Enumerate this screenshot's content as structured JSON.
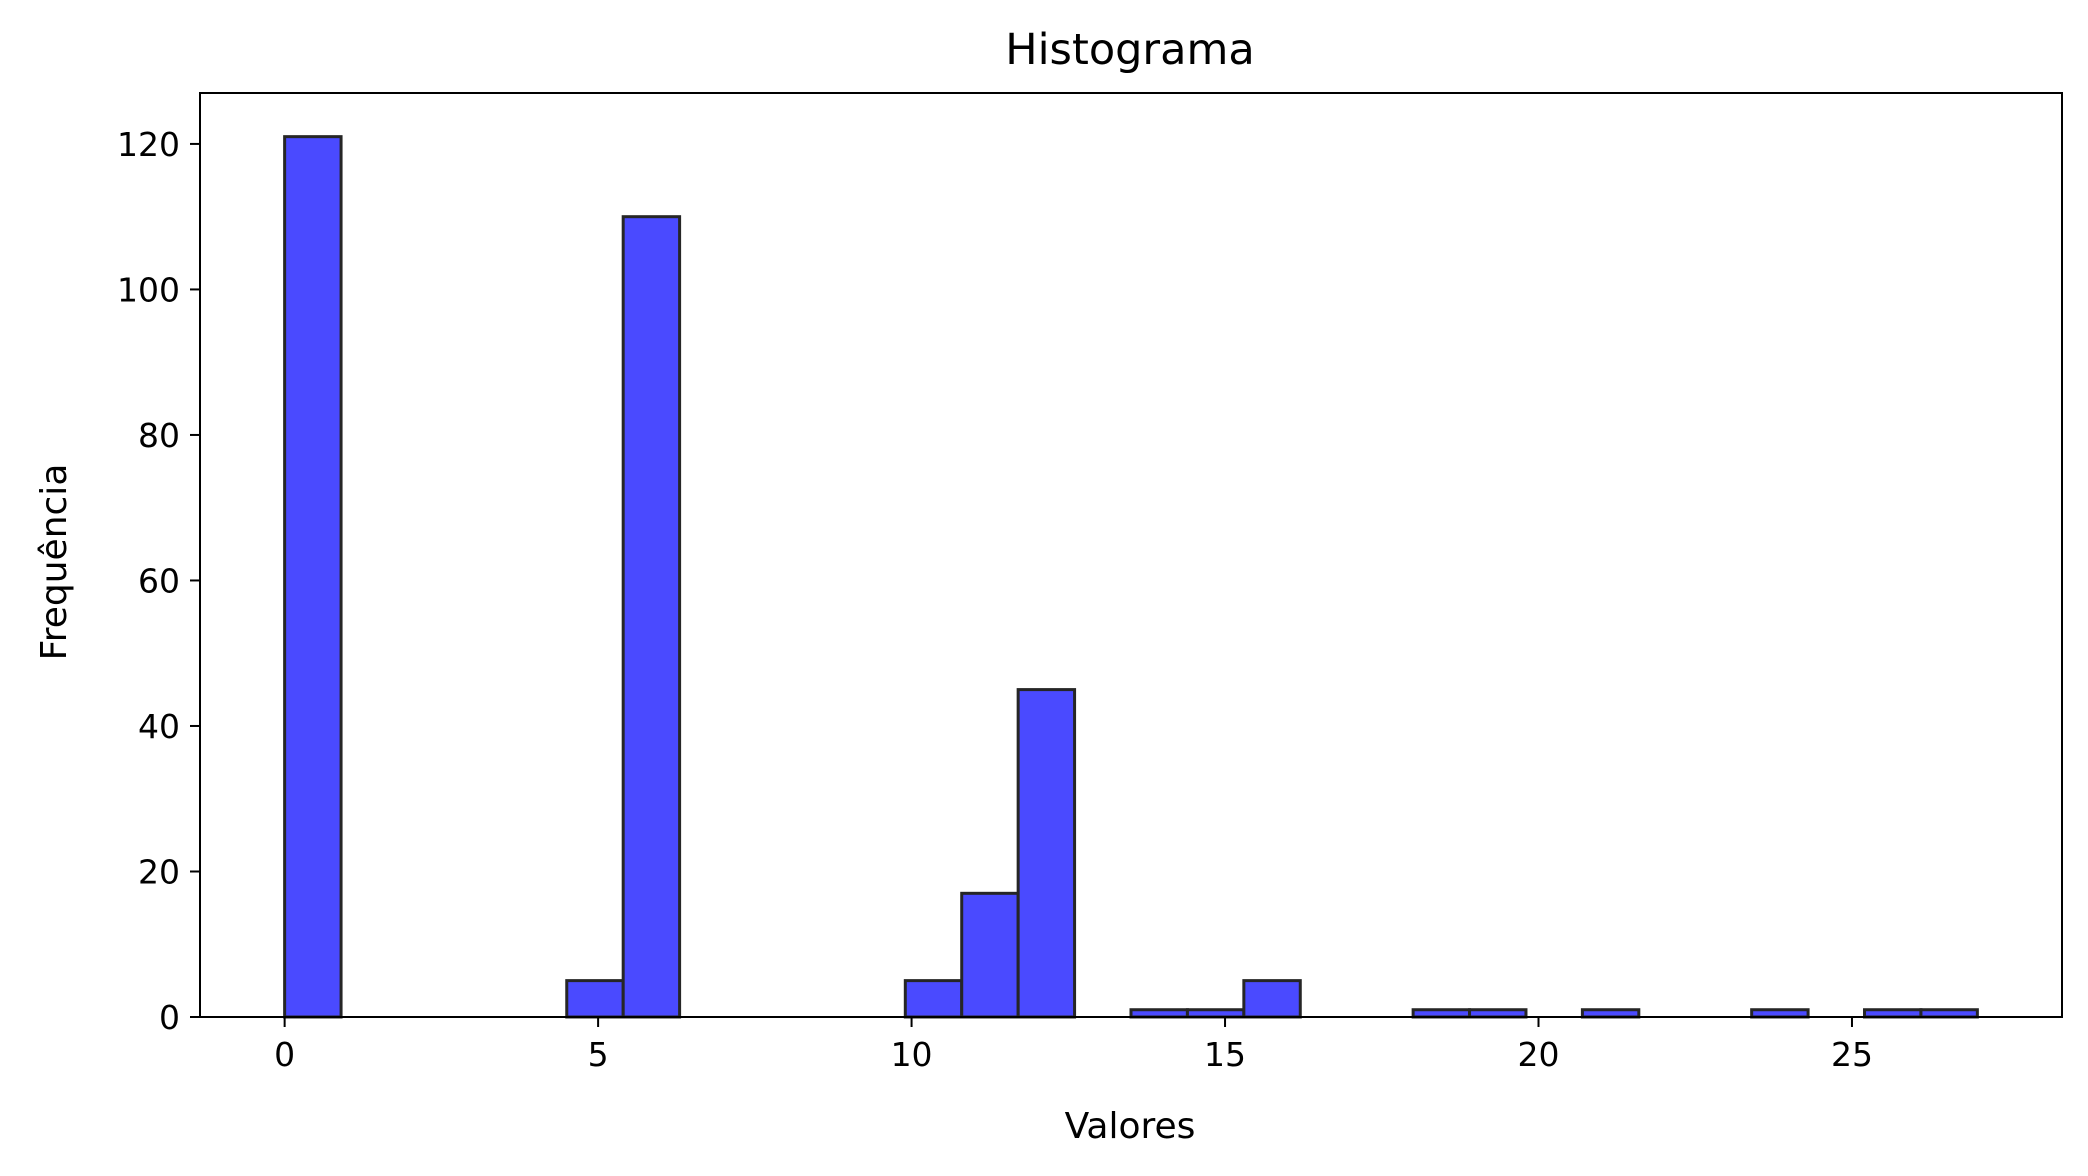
{
  "chart_data": {
    "type": "bar",
    "title": "Histograma",
    "xlabel": "Valores",
    "ylabel": "Frequência",
    "bar_color": "#4a4aff",
    "edge_color": "#262626",
    "xlim": [
      -1.35,
      28.35
    ],
    "ylim": [
      0,
      127
    ],
    "x_ticks": [
      0,
      5,
      10,
      15,
      20,
      25
    ],
    "y_ticks": [
      0,
      20,
      40,
      60,
      80,
      100,
      120
    ],
    "bin_edges": [
      0,
      0.9,
      1.8,
      2.7,
      3.6,
      4.5,
      5.4,
      6.3,
      7.2,
      8.1,
      9.0,
      9.9,
      10.8,
      11.7,
      12.6,
      13.5,
      14.4,
      15.3,
      16.2,
      17.1,
      18.0,
      18.9,
      19.8,
      20.7,
      21.6,
      22.5,
      23.4,
      24.3,
      25.2,
      26.1,
      27.0
    ],
    "counts": [
      121,
      0,
      0,
      0,
      0,
      5,
      110,
      0,
      0,
      0,
      0,
      5,
      17,
      45,
      0,
      1,
      1,
      5,
      0,
      0,
      1,
      1,
      0,
      1,
      0,
      0,
      1,
      0,
      1,
      1
    ],
    "grid": false,
    "legend": false
  }
}
